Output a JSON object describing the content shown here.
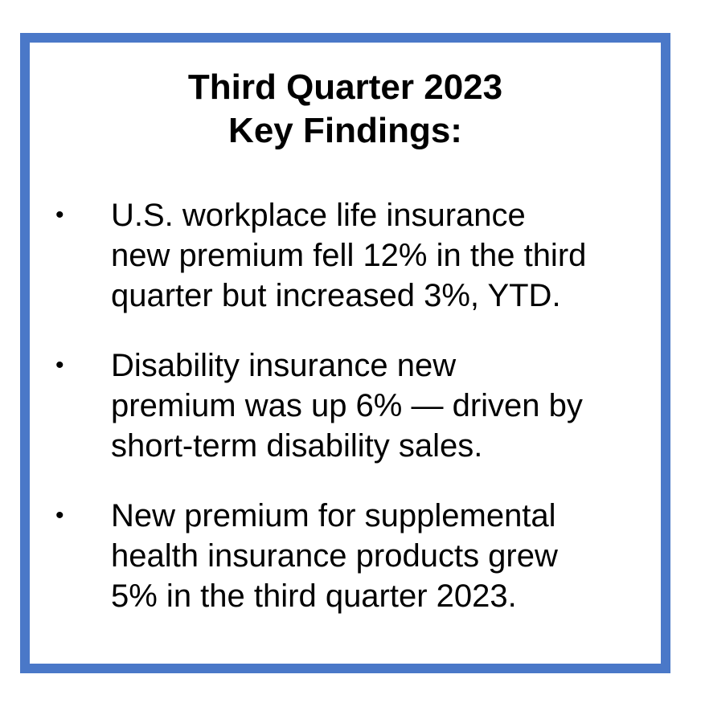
{
  "colors": {
    "border": "#4a78c8",
    "text": "#000000",
    "background": "#ffffff"
  },
  "title": {
    "line1": "Third Quarter 2023",
    "line2": "Key Findings:"
  },
  "findings": [
    {
      "bullet": "•",
      "lines": [
        "U.S. workplace life insurance",
        "new premium fell 12% in the third",
        "quarter but increased 3%, YTD."
      ]
    },
    {
      "bullet": "•",
      "lines": [
        "Disability insurance new",
        "premium was up 6% — driven by",
        "short-term disability sales."
      ]
    },
    {
      "bullet": "•",
      "lines": [
        "New premium for supplemental",
        "health insurance products grew",
        "5% in the third quarter 2023."
      ]
    }
  ]
}
